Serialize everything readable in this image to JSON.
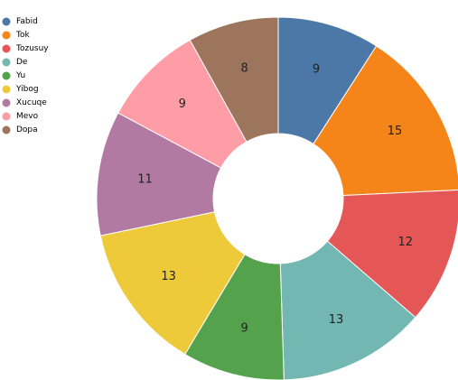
{
  "chart_data": {
    "type": "pie",
    "subtype": "donut",
    "legend_position": "top-left",
    "categories": [
      "Fabid",
      "Tok",
      "Tozusuy",
      "De",
      "Yu",
      "Yibog",
      "Xucuqe",
      "Mevo",
      "Dopa"
    ],
    "values": [
      9,
      15,
      12,
      13,
      9,
      13,
      11,
      9,
      8
    ],
    "colors": [
      "#4c78a8",
      "#f58518",
      "#e45756",
      "#72b7b2",
      "#54a24b",
      "#eeca3b",
      "#b279a2",
      "#ff9da6",
      "#9d755d"
    ]
  }
}
